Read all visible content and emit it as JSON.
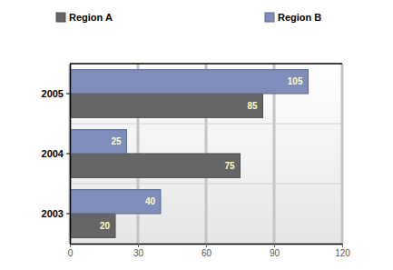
{
  "chart_data": {
    "type": "bar",
    "orientation": "horizontal",
    "categories": [
      "2003",
      "2004",
      "2005"
    ],
    "series": [
      {
        "name": "Region A",
        "color": "#666666",
        "values": [
          20,
          75,
          85
        ]
      },
      {
        "name": "Region B",
        "color": "#7f8dbb",
        "values": [
          40,
          25,
          105
        ]
      }
    ],
    "xlim": [
      0,
      120
    ],
    "xticks": [
      0,
      30,
      60,
      90,
      120
    ],
    "grid": true,
    "data_labels": true,
    "legend": "top"
  }
}
